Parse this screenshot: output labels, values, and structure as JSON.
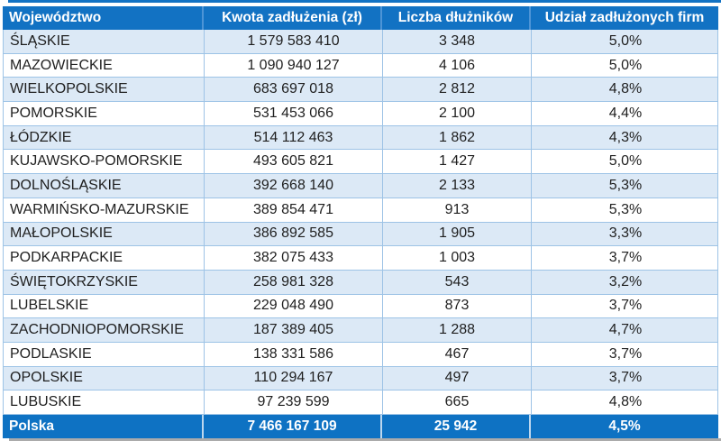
{
  "chart_data": {
    "type": "table",
    "columns": [
      "Województwo",
      "Kwota zadłużenia (zł)",
      "Liczba dłużników",
      "Udział zadłużonych firm"
    ],
    "rows": [
      [
        "ŚLĄSKIE",
        "1 579 583 410",
        "3 348",
        "5,0%"
      ],
      [
        "MAZOWIECKIE",
        "1 090 940 127",
        "4 106",
        "5,0%"
      ],
      [
        "WIELKOPOLSKIE",
        "683 697 018",
        "2 812",
        "4,8%"
      ],
      [
        "POMORSKIE",
        "531 453 066",
        "2 100",
        "4,4%"
      ],
      [
        "ŁÓDZKIE",
        "514 112 463",
        "1 862",
        "4,3%"
      ],
      [
        "KUJAWSKO-POMORSKIE",
        "493 605 821",
        "1 427",
        "5,0%"
      ],
      [
        "DOLNOŚLĄSKIE",
        "392 668 140",
        "2 133",
        "5,3%"
      ],
      [
        "WARMIŃSKO-MAZURSKIE",
        "389 854 471",
        "913",
        "5,3%"
      ],
      [
        "MAŁOPOLSKIE",
        "386 892 585",
        "1 905",
        "3,3%"
      ],
      [
        "PODKARPACKIE",
        "382 075 433",
        "1 003",
        "3,7%"
      ],
      [
        "ŚWIĘTOKRZYSKIE",
        "258 981 328",
        "543",
        "3,2%"
      ],
      [
        "LUBELSKIE",
        "229 048 490",
        "873",
        "3,7%"
      ],
      [
        "ZACHODNIOPOMORSKIE",
        "187 389 405",
        "1 288",
        "4,7%"
      ],
      [
        "PODLASKIE",
        "138 331 586",
        "467",
        "3,7%"
      ],
      [
        "OPOLSKIE",
        "110 294 167",
        "497",
        "3,7%"
      ],
      [
        "LUBUSKIE",
        "97 239 599",
        "665",
        "4,8%"
      ]
    ],
    "footer": [
      "Polska",
      "7 466 167 109",
      "25 942",
      "4,5%"
    ]
  },
  "colors": {
    "header_bg": "#1272C3",
    "footer_bg": "#0E72C3",
    "stripe_bg": "#DCE9F6",
    "grid_border": "#9DC3E6",
    "header_divider": "#4D94D6",
    "footer_divider": "#BDD7EE",
    "header_text": "#FFFFFF",
    "body_text": "#1F1F1F",
    "shadow": "#ABABAB"
  }
}
